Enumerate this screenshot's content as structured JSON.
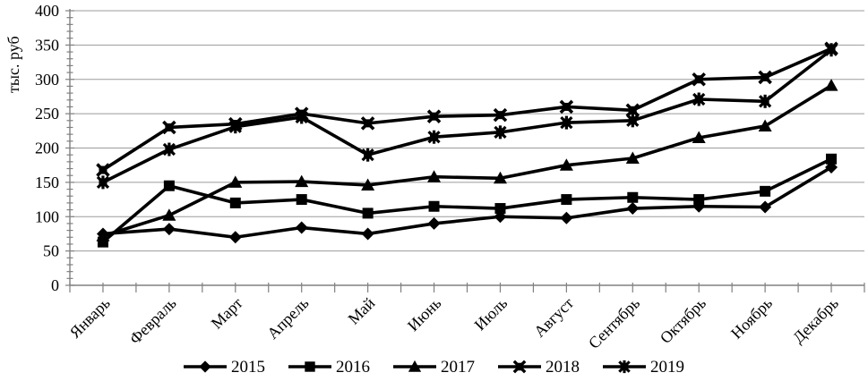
{
  "page": {
    "background": "#ffffff"
  },
  "chart_data": {
    "type": "line",
    "title": "",
    "ylabel": "тыс. руб",
    "xlabel": "",
    "ylim": [
      0,
      400
    ],
    "ytick_step": 50,
    "y_minor_step": 10,
    "grid": "horizontal-only",
    "legend_position": "bottom",
    "y_tick_labels": [
      "0",
      "50",
      "100",
      "150",
      "200",
      "250",
      "300",
      "350",
      "400"
    ],
    "categories": [
      "Январь",
      "Февраль",
      "Март",
      "Апрель",
      "Май",
      "Июнь",
      "Июль",
      "Август",
      "Сентябрь",
      "Октябрь",
      "Ноябрь",
      "Декабрь"
    ],
    "series": [
      {
        "name": "2015",
        "marker": "diamond",
        "values": [
          75,
          82,
          70,
          84,
          75,
          90,
          100,
          98,
          112,
          115,
          114,
          172
        ]
      },
      {
        "name": "2016",
        "marker": "square",
        "values": [
          63,
          145,
          120,
          125,
          105,
          115,
          112,
          125,
          128,
          125,
          137,
          184
        ]
      },
      {
        "name": "2017",
        "marker": "triangle",
        "values": [
          72,
          102,
          150,
          151,
          146,
          158,
          156,
          175,
          185,
          215,
          232,
          291
        ]
      },
      {
        "name": "2018",
        "marker": "x-square",
        "values": [
          168,
          230,
          235,
          250,
          236,
          246,
          248,
          260,
          255,
          300,
          303,
          345
        ]
      },
      {
        "name": "2019",
        "marker": "star",
        "values": [
          150,
          198,
          231,
          245,
          190,
          216,
          223,
          237,
          240,
          271,
          268,
          343
        ]
      }
    ],
    "colors": {
      "series": "#000000",
      "grid": "#9b9b9b",
      "axis": "#808080",
      "text": "#000000",
      "background": "#ffffff"
    }
  }
}
